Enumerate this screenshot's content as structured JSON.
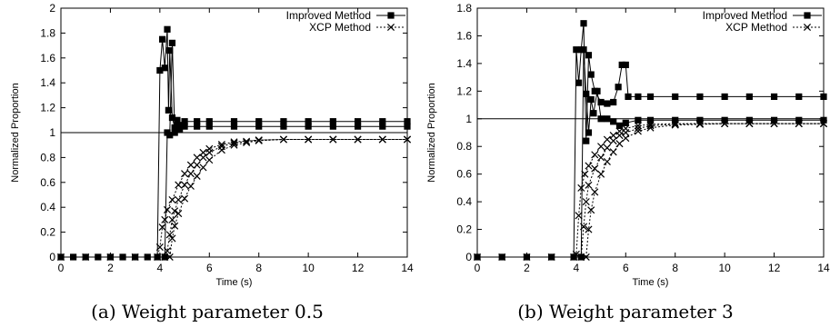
{
  "chart_data": [
    {
      "type": "line",
      "caption": "(a) Weight parameter 0.5",
      "xlabel": "Time (s)",
      "ylabel": "Normalized Proportion",
      "xlim": [
        0,
        14
      ],
      "ylim": [
        0,
        2
      ],
      "xticks": [
        "0",
        "2",
        "4",
        "6",
        "8",
        "10",
        "12",
        "14"
      ],
      "yticks": [
        "0",
        "0.2",
        "0.4",
        "0.6",
        "0.8",
        "1",
        "1.2",
        "1.4",
        "1.6",
        "1.8",
        "2"
      ],
      "reference_line": 1,
      "legend_position": "top-right",
      "series": [
        {
          "name": "Improved Method",
          "marker": "square",
          "curves": [
            [
              [
                0,
                0
              ],
              [
                0.5,
                0
              ],
              [
                1,
                0
              ],
              [
                1.5,
                0
              ],
              [
                2,
                0
              ],
              [
                2.5,
                0
              ],
              [
                3,
                0
              ],
              [
                3.5,
                0
              ],
              [
                3.9,
                0
              ],
              [
                4.0,
                1.5
              ],
              [
                4.1,
                1.75
              ],
              [
                4.2,
                1.52
              ],
              [
                4.3,
                1.83
              ],
              [
                4.35,
                1.18
              ],
              [
                4.4,
                1.66
              ],
              [
                4.5,
                1.12
              ],
              [
                4.6,
                1.04
              ],
              [
                4.7,
                1.1
              ],
              [
                4.8,
                1.06
              ],
              [
                5,
                1.09
              ],
              [
                5.5,
                1.09
              ],
              [
                6,
                1.09
              ],
              [
                7,
                1.09
              ],
              [
                8,
                1.09
              ],
              [
                9,
                1.09
              ],
              [
                10,
                1.09
              ],
              [
                11,
                1.09
              ],
              [
                12,
                1.09
              ],
              [
                13,
                1.09
              ],
              [
                14,
                1.09
              ]
            ],
            [
              [
                4.2,
                0
              ],
              [
                4.3,
                1.0
              ],
              [
                4.4,
                0.98
              ],
              [
                4.5,
                1.72
              ],
              [
                4.6,
                1.0
              ],
              [
                4.7,
                1.06
              ],
              [
                4.8,
                1.03
              ],
              [
                5,
                1.05
              ],
              [
                5.5,
                1.05
              ],
              [
                6,
                1.05
              ],
              [
                7,
                1.05
              ],
              [
                8,
                1.05
              ],
              [
                9,
                1.05
              ],
              [
                10,
                1.05
              ],
              [
                11,
                1.05
              ],
              [
                12,
                1.05
              ],
              [
                13,
                1.05
              ],
              [
                14,
                1.05
              ]
            ]
          ]
        },
        {
          "name": "XCP Method",
          "marker": "x",
          "curves": [
            [
              [
                0,
                0
              ],
              [
                1,
                0
              ],
              [
                2,
                0
              ],
              [
                3,
                0
              ],
              [
                3.9,
                0
              ],
              [
                4.0,
                0.08
              ],
              [
                4.1,
                0.24
              ],
              [
                4.2,
                0.3
              ],
              [
                4.3,
                0.38
              ],
              [
                4.5,
                0.46
              ],
              [
                4.75,
                0.58
              ],
              [
                5,
                0.67
              ],
              [
                5.25,
                0.74
              ],
              [
                5.5,
                0.8
              ],
              [
                5.75,
                0.84
              ],
              [
                6,
                0.87
              ],
              [
                6.5,
                0.905
              ],
              [
                7,
                0.925
              ],
              [
                8,
                0.94
              ],
              [
                9,
                0.945
              ],
              [
                10,
                0.945
              ],
              [
                11,
                0.945
              ],
              [
                12,
                0.945
              ],
              [
                13,
                0.945
              ],
              [
                14,
                0.945
              ]
            ],
            [
              [
                4.2,
                0
              ],
              [
                4.3,
                0.05
              ],
              [
                4.4,
                0.18
              ],
              [
                4.5,
                0.3
              ],
              [
                4.6,
                0.37
              ],
              [
                4.75,
                0.46
              ],
              [
                5,
                0.58
              ],
              [
                5.25,
                0.67
              ],
              [
                5.5,
                0.74
              ],
              [
                5.75,
                0.8
              ],
              [
                6,
                0.84
              ],
              [
                6.5,
                0.89
              ],
              [
                7,
                0.915
              ],
              [
                7.5,
                0.93
              ],
              [
                8,
                0.94
              ],
              [
                9,
                0.945
              ],
              [
                10,
                0.945
              ],
              [
                11,
                0.945
              ],
              [
                12,
                0.945
              ],
              [
                13,
                0.945
              ],
              [
                14,
                0.945
              ]
            ],
            [
              [
                4.4,
                0
              ],
              [
                4.5,
                0.15
              ],
              [
                4.6,
                0.25
              ],
              [
                4.75,
                0.35
              ],
              [
                5,
                0.47
              ],
              [
                5.25,
                0.57
              ],
              [
                5.5,
                0.65
              ],
              [
                5.75,
                0.72
              ],
              [
                6,
                0.78
              ],
              [
                6.5,
                0.86
              ],
              [
                7,
                0.9
              ],
              [
                7.5,
                0.92
              ],
              [
                8,
                0.935
              ],
              [
                9,
                0.945
              ],
              [
                10,
                0.945
              ],
              [
                11,
                0.945
              ],
              [
                12,
                0.945
              ],
              [
                13,
                0.945
              ],
              [
                14,
                0.945
              ]
            ]
          ]
        }
      ]
    },
    {
      "type": "line",
      "caption": "(b) Weight parameter 3",
      "xlabel": "Time (s)",
      "ylabel": "Normalized Proportion",
      "xlim": [
        0,
        14
      ],
      "ylim": [
        0,
        1.8
      ],
      "xticks": [
        "0",
        "2",
        "4",
        "6",
        "8",
        "10",
        "12",
        "14"
      ],
      "yticks": [
        "0",
        "0.2",
        "0.4",
        "0.6",
        "0.8",
        "1",
        "1.2",
        "1.4",
        "1.6",
        "1.8"
      ],
      "reference_line": 1,
      "legend_position": "top-right",
      "series": [
        {
          "name": "Improved Method",
          "marker": "square",
          "curves": [
            [
              [
                0,
                0
              ],
              [
                1,
                0
              ],
              [
                2,
                0
              ],
              [
                3,
                0
              ],
              [
                3.9,
                0
              ],
              [
                4.0,
                1.5
              ],
              [
                4.1,
                1.26
              ],
              [
                4.2,
                1.5
              ],
              [
                4.3,
                1.69
              ],
              [
                4.4,
                0.84
              ],
              [
                4.5,
                1.46
              ],
              [
                4.6,
                1.32
              ],
              [
                4.75,
                1.2
              ],
              [
                5,
                1.12
              ],
              [
                5.25,
                1.11
              ],
              [
                5.5,
                1.12
              ],
              [
                5.7,
                1.23
              ],
              [
                5.85,
                1.39
              ],
              [
                6,
                1.39
              ],
              [
                6.1,
                1.16
              ],
              [
                6.5,
                1.16
              ],
              [
                7,
                1.16
              ],
              [
                8,
                1.16
              ],
              [
                9,
                1.16
              ],
              [
                10,
                1.16
              ],
              [
                11,
                1.16
              ],
              [
                12,
                1.16
              ],
              [
                13,
                1.16
              ],
              [
                14,
                1.16
              ]
            ],
            [
              [
                4.2,
                0
              ],
              [
                4.3,
                1.5
              ],
              [
                4.4,
                1.18
              ],
              [
                4.5,
                0.9
              ],
              [
                4.6,
                1.14
              ],
              [
                4.7,
                1.04
              ],
              [
                4.85,
                1.2
              ],
              [
                5,
                1.0
              ],
              [
                5.25,
                1.0
              ],
              [
                5.5,
                0.98
              ],
              [
                5.75,
                0.95
              ],
              [
                6,
                0.97
              ],
              [
                6.5,
                0.99
              ],
              [
                7,
                0.99
              ],
              [
                8,
                0.99
              ],
              [
                9,
                0.99
              ],
              [
                10,
                0.99
              ],
              [
                11,
                0.99
              ],
              [
                12,
                0.99
              ],
              [
                13,
                0.99
              ],
              [
                14,
                0.99
              ]
            ]
          ]
        },
        {
          "name": "XCP Method",
          "marker": "x",
          "curves": [
            [
              [
                0,
                0
              ],
              [
                1,
                0
              ],
              [
                2,
                0
              ],
              [
                3,
                0
              ],
              [
                3.9,
                0
              ],
              [
                4.0,
                0.02
              ],
              [
                4.1,
                0.3
              ],
              [
                4.2,
                0.5
              ],
              [
                4.35,
                0.6
              ],
              [
                4.5,
                0.66
              ],
              [
                4.75,
                0.74
              ],
              [
                5,
                0.8
              ],
              [
                5.25,
                0.85
              ],
              [
                5.5,
                0.88
              ],
              [
                5.75,
                0.91
              ],
              [
                6,
                0.93
              ],
              [
                6.5,
                0.95
              ],
              [
                7,
                0.96
              ],
              [
                8,
                0.965
              ],
              [
                9,
                0.965
              ],
              [
                10,
                0.965
              ],
              [
                11,
                0.965
              ],
              [
                12,
                0.965
              ],
              [
                13,
                0.965
              ],
              [
                14,
                0.965
              ]
            ],
            [
              [
                4.2,
                0
              ],
              [
                4.3,
                0.22
              ],
              [
                4.4,
                0.4
              ],
              [
                4.5,
                0.52
              ],
              [
                4.75,
                0.64
              ],
              [
                5,
                0.72
              ],
              [
                5.25,
                0.79
              ],
              [
                5.5,
                0.84
              ],
              [
                5.75,
                0.88
              ],
              [
                6,
                0.9
              ],
              [
                6.5,
                0.93
              ],
              [
                7,
                0.95
              ],
              [
                8,
                0.96
              ],
              [
                9,
                0.965
              ],
              [
                10,
                0.965
              ],
              [
                11,
                0.965
              ],
              [
                12,
                0.965
              ],
              [
                13,
                0.965
              ],
              [
                14,
                0.965
              ]
            ],
            [
              [
                4.4,
                0
              ],
              [
                4.5,
                0.2
              ],
              [
                4.6,
                0.34
              ],
              [
                4.75,
                0.47
              ],
              [
                5,
                0.6
              ],
              [
                5.25,
                0.69
              ],
              [
                5.5,
                0.76
              ],
              [
                5.75,
                0.82
              ],
              [
                6,
                0.86
              ],
              [
                6.5,
                0.91
              ],
              [
                7,
                0.935
              ],
              [
                8,
                0.955
              ],
              [
                9,
                0.96
              ],
              [
                10,
                0.965
              ],
              [
                11,
                0.965
              ],
              [
                12,
                0.965
              ],
              [
                13,
                0.965
              ],
              [
                14,
                0.965
              ]
            ]
          ]
        }
      ]
    }
  ]
}
